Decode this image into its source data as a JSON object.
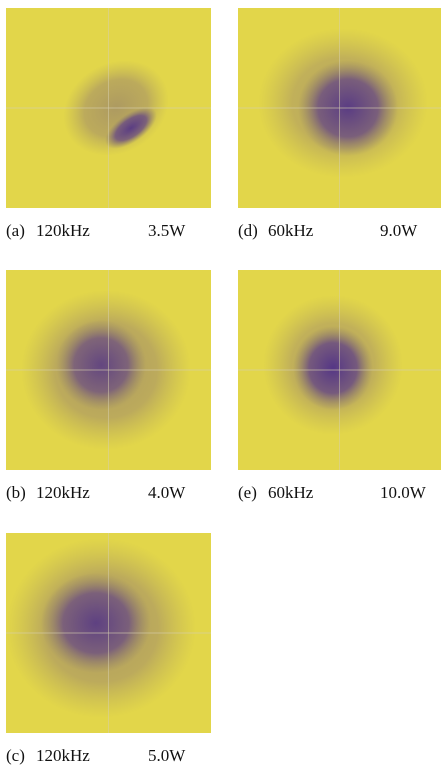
{
  "panels": [
    {
      "label": "(a)",
      "frequency": "120kHz",
      "power": "3.5W"
    },
    {
      "label": "(d)",
      "frequency": "60kHz",
      "power": "9.0W"
    },
    {
      "label": "(b)",
      "frequency": "120kHz",
      "power": "4.0W"
    },
    {
      "label": "(e)",
      "frequency": "60kHz",
      "power": "10.0W"
    },
    {
      "label": "(c)",
      "frequency": "120kHz",
      "power": "5.0W"
    }
  ]
}
